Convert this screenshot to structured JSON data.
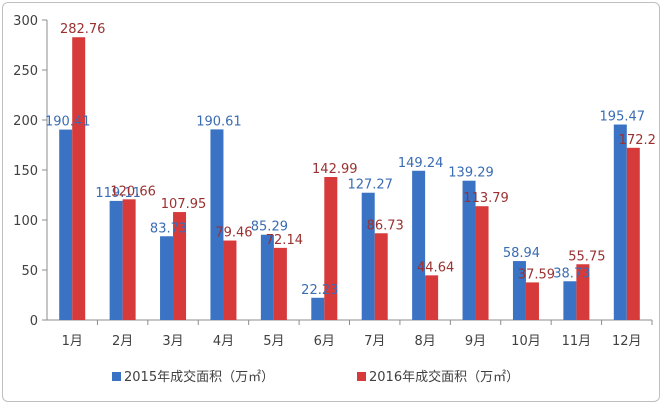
{
  "chart_data": {
    "type": "bar",
    "categories": [
      "1月",
      "2月",
      "3月",
      "4月",
      "5月",
      "6月",
      "7月",
      "8月",
      "9月",
      "10月",
      "11月",
      "12月"
    ],
    "series": [
      {
        "name": "2015年成交面积（万㎡）",
        "color": "#3a72c4",
        "values": [
          190.41,
          119.11,
          83.73,
          190.61,
          85.29,
          22.23,
          127.27,
          149.24,
          139.29,
          58.94,
          38.73,
          195.47
        ],
        "labels": [
          "190.41",
          "119.11",
          "83.73",
          "190.61",
          "85.29",
          "22.23",
          "127.27",
          "149.24",
          "139.29",
          "58.94",
          "38.73",
          "195.47"
        ]
      },
      {
        "name": "2016年成交面积（万㎡）",
        "color": "#d63a3a",
        "values": [
          282.76,
          120.66,
          107.95,
          79.46,
          72.14,
          142.99,
          86.73,
          44.64,
          113.79,
          37.59,
          55.75,
          172.2
        ],
        "labels": [
          "282.76",
          "120.66",
          "107.95",
          "79.46",
          "72.14",
          "142.99",
          "86.73",
          "44.64",
          "113.79",
          "37.59",
          "55.75",
          "172.2"
        ]
      }
    ],
    "y_ticks": [
      "0",
      "50",
      "100",
      "150",
      "200",
      "250",
      "300"
    ],
    "ylim": [
      0,
      300
    ],
    "grid": false,
    "legend_position": "bottom"
  }
}
